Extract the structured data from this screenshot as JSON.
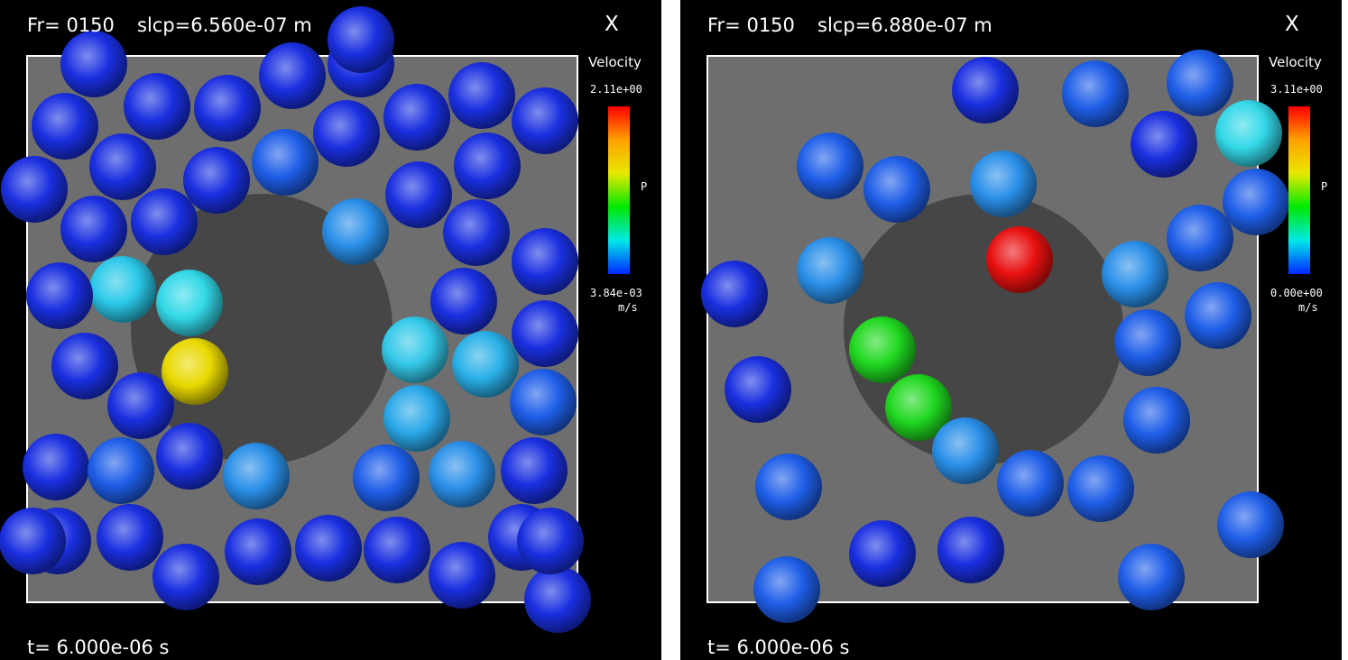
{
  "panels": [
    {
      "frame": "Fr= 0150",
      "slcp": "slcp=6.560e-07 m",
      "axis": "X",
      "time": "t= 6.000e-06 s",
      "colorbar": {
        "title": "Velocity",
        "max": "2.11e+00",
        "min": "3.84e-03",
        "unit": "m/s",
        "var": "P",
        "colors": [
          "#ff0000",
          "#ffa000",
          "#e8e800",
          "#00e800",
          "#00e8e8",
          "#0028ff"
        ]
      },
      "box": {
        "color": "#6e6e6e",
        "border": "#ffffff"
      },
      "obstacle": {
        "color": "#464646"
      },
      "particles": [
        {
          "color": "#1a2fe0"
        },
        {
          "color": "#1a2fe0"
        },
        {
          "color": "#1a2fe0"
        },
        {
          "color": "#1a2fe0"
        },
        {
          "color": "#1a2fe0"
        },
        {
          "color": "#1a2fe0"
        },
        {
          "color": "#1a2fe0"
        },
        {
          "color": "#1a2fe0"
        },
        {
          "color": "#1a2fe0"
        },
        {
          "color": "#1a2fe0"
        },
        {
          "color": "#1a2fe0"
        },
        {
          "color": "#1a2fe0"
        },
        {
          "color": "#1e5ee8"
        },
        {
          "color": "#1a2fe0"
        },
        {
          "color": "#1a2fe0"
        },
        {
          "color": "#1a2fe0"
        },
        {
          "color": "#1a2fe0"
        },
        {
          "color": "#1a2fe0"
        },
        {
          "color": "#2a8fe8"
        },
        {
          "color": "#1a2fe0"
        },
        {
          "color": "#2ac8e8"
        },
        {
          "color": "#1a2fe0"
        },
        {
          "color": "#1a2fe0"
        },
        {
          "color": "#33d8e8"
        },
        {
          "color": "#33c8e8"
        },
        {
          "color": "#1a2fe0"
        },
        {
          "color": "#1a2fe0"
        },
        {
          "color": "#1a2fe0"
        },
        {
          "color": "#e8d800"
        },
        {
          "color": "#2ab0e8"
        },
        {
          "color": "#2aa8e8"
        },
        {
          "color": "#1a2fe0"
        },
        {
          "color": "#1e5ee8"
        },
        {
          "color": "#1a2fe0"
        },
        {
          "color": "#1e5ee8"
        },
        {
          "color": "#1a2fe0"
        },
        {
          "color": "#2a8fe8"
        },
        {
          "color": "#1e5ee8"
        },
        {
          "color": "#2a8fe8"
        },
        {
          "color": "#1a2fe0"
        },
        {
          "color": "#1a2fe0"
        },
        {
          "color": "#1a2fe0"
        },
        {
          "color": "#1a2fe0"
        },
        {
          "color": "#1a2fe0"
        },
        {
          "color": "#1a2fe0"
        },
        {
          "color": "#1a2fe0"
        },
        {
          "color": "#1a2fe0"
        },
        {
          "color": "#1a2fe0"
        },
        {
          "color": "#1a2fe0"
        },
        {
          "color": "#1a2fe0"
        },
        {
          "color": "#1a2fe0"
        },
        {
          "color": "#1a2fe0"
        }
      ]
    },
    {
      "frame": "Fr= 0150",
      "slcp": "slcp=6.880e-07 m",
      "axis": "X",
      "time": "t= 6.000e-06 s",
      "colorbar": {
        "title": "Velocity",
        "max": "3.11e+00",
        "min": "0.00e+00",
        "unit": "m/s",
        "var": "P",
        "colors": [
          "#ff0000",
          "#ffa000",
          "#e8e800",
          "#00e800",
          "#00e8e8",
          "#0028ff"
        ]
      },
      "box": {
        "color": "#6e6e6e",
        "border": "#ffffff"
      },
      "obstacle": {
        "color": "#464646"
      },
      "particles": [
        {
          "color": "#1a2fe0"
        },
        {
          "color": "#1e5ee8"
        },
        {
          "color": "#1e5ee8"
        },
        {
          "color": "#1e5ee8"
        },
        {
          "color": "#1a2fe0"
        },
        {
          "color": "#1e5ee8"
        },
        {
          "color": "#2a8fe8"
        },
        {
          "color": "#33d8e8"
        },
        {
          "color": "#2a8fe8"
        },
        {
          "color": "#1a2fe0"
        },
        {
          "color": "#1e5ee8"
        },
        {
          "color": "#1e5ee8"
        },
        {
          "color": "#2a8fe8"
        },
        {
          "color": "#e81010"
        },
        {
          "color": "#2a8fe8"
        },
        {
          "color": "#1a2fe0"
        },
        {
          "color": "#1e5ee8"
        },
        {
          "color": "#1e5ee8"
        },
        {
          "color": "#20d820"
        },
        {
          "color": "#1e5ee8"
        },
        {
          "color": "#1e5ee8"
        },
        {
          "color": "#20d820"
        },
        {
          "color": "#2a8fe8"
        },
        {
          "color": "#1e5ee8"
        },
        {
          "color": "#1e5ee8"
        },
        {
          "color": "#1e5ee8"
        },
        {
          "color": "#1e5ee8"
        },
        {
          "color": "#1a2fe0"
        },
        {
          "color": "#1a2fe0"
        },
        {
          "color": "#1e5ee8"
        },
        {
          "color": "#1e5ee8"
        }
      ]
    }
  ]
}
